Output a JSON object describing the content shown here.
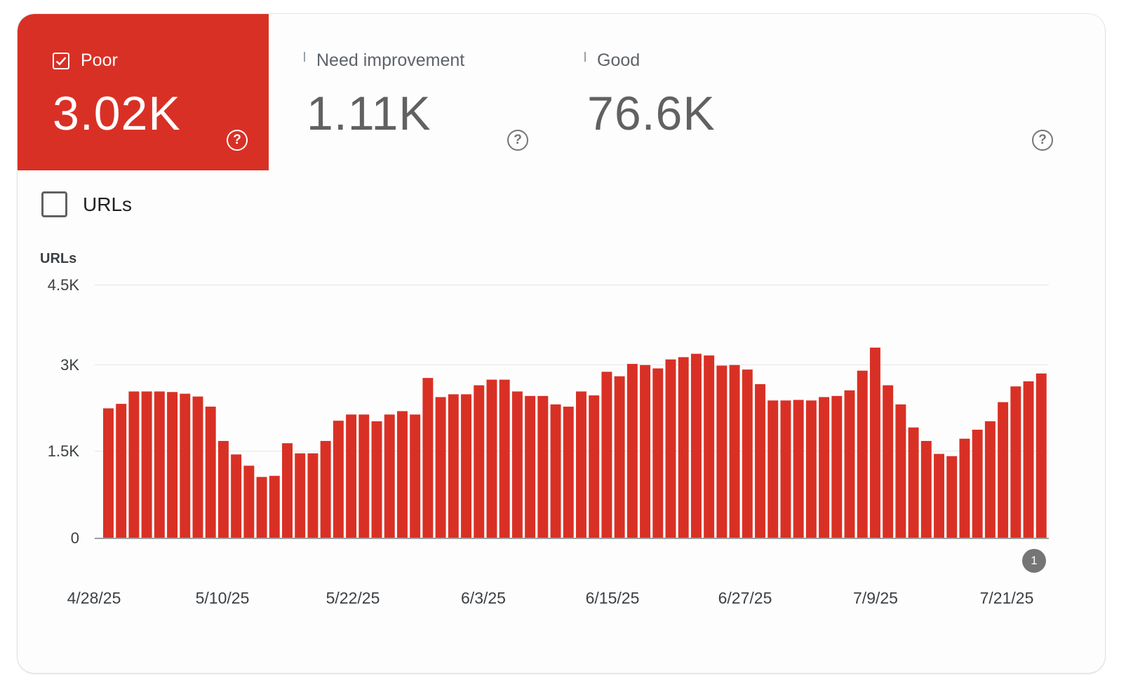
{
  "tiles": {
    "poor": {
      "label": "Poor",
      "value": "3.02K",
      "checked": true,
      "color": "#d93025"
    },
    "need_improvement": {
      "label": "Need improvement",
      "value": "1.11K",
      "checked": false
    },
    "good": {
      "label": "Good",
      "value": "76.6K",
      "checked": false
    }
  },
  "urls_toggle": {
    "label": "URLs",
    "checked": false
  },
  "chart_data": {
    "type": "bar",
    "ylabel": "URLs",
    "ylim": [
      0,
      4500
    ],
    "y_ticks": [
      "4.5K",
      "3K",
      "1.5K",
      "0"
    ],
    "x_ticks": [
      "4/28/25",
      "5/10/25",
      "5/22/25",
      "6/3/25",
      "6/15/25",
      "6/27/25",
      "7/9/25",
      "7/21/25"
    ],
    "color": "#d93025",
    "values": [
      2300,
      2380,
      2600,
      2600,
      2600,
      2590,
      2560,
      2510,
      2330,
      1720,
      1480,
      1280,
      1080,
      1100,
      1680,
      1500,
      1500,
      1720,
      2080,
      2190,
      2190,
      2070,
      2190,
      2250,
      2190,
      2840,
      2500,
      2550,
      2550,
      2710,
      2810,
      2810,
      2600,
      2520,
      2520,
      2370,
      2330,
      2600,
      2530,
      2950,
      2870,
      3090,
      3070,
      3010,
      3170,
      3210,
      3270,
      3240,
      3060,
      3070,
      2990,
      2730,
      2440,
      2440,
      2450,
      2440,
      2500,
      2520,
      2620,
      2970,
      3380,
      2710,
      2370,
      1960,
      1720,
      1490,
      1450,
      1760,
      1920,
      2070,
      2410,
      2690,
      2780,
      2920
    ],
    "annotation": "1"
  }
}
